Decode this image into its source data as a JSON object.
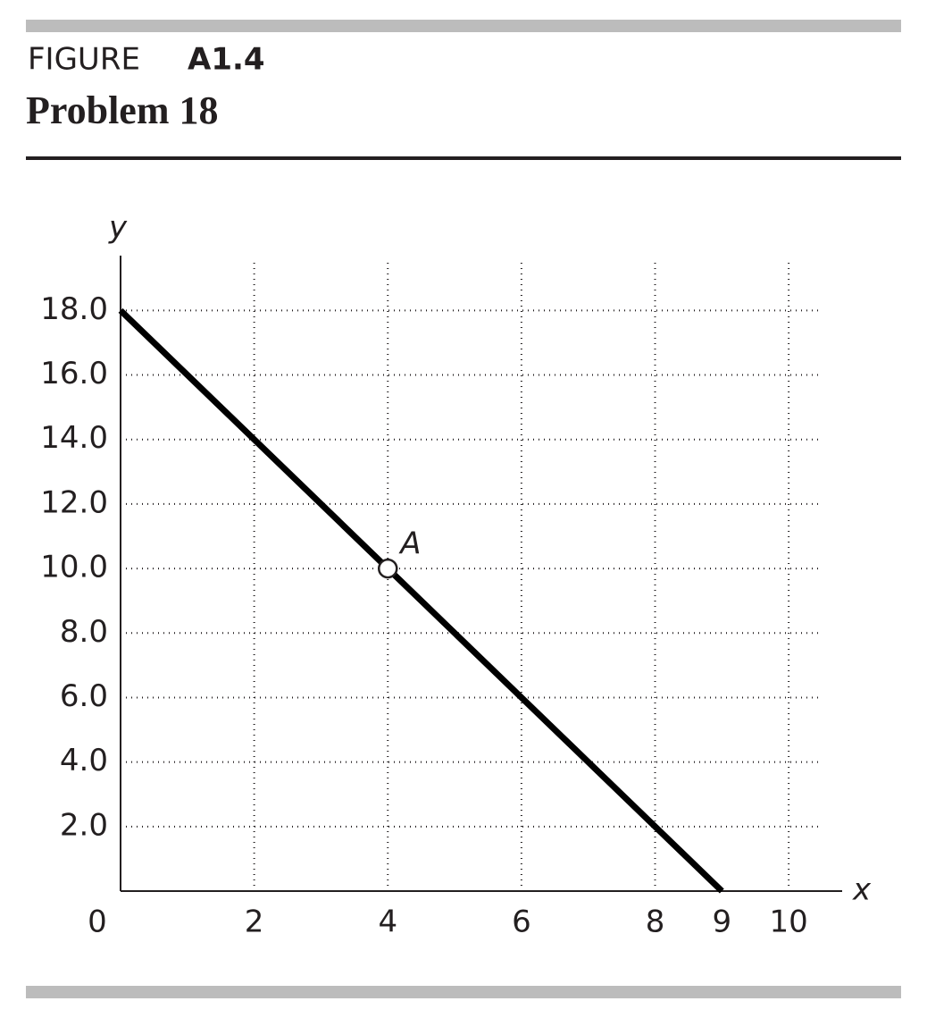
{
  "header": {
    "figure_label": "FIGURE",
    "figure_number": "A1.4",
    "title": "Problem 18"
  },
  "chart_data": {
    "type": "line",
    "x_label": "x",
    "y_label": "y",
    "x": [
      0,
      4,
      9
    ],
    "series": [
      {
        "color": "#000000",
        "values": [
          18,
          10,
          0
        ]
      }
    ],
    "points": [
      {
        "label": "A",
        "x": 4,
        "y": 10
      }
    ],
    "xlim": [
      0,
      10.8
    ],
    "ylim": [
      0,
      19.7
    ],
    "xticks": [
      0,
      2,
      4,
      6,
      8,
      9,
      10
    ],
    "xgrid": [
      2,
      4,
      6,
      8,
      10
    ],
    "yticks": [
      {
        "value": 2,
        "label": "2.0"
      },
      {
        "value": 4,
        "label": "4.0"
      },
      {
        "value": 6,
        "label": "6.0"
      },
      {
        "value": 8,
        "label": "8.0"
      },
      {
        "value": 10,
        "label": "10.0"
      },
      {
        "value": 12,
        "label": "12.0"
      },
      {
        "value": 14,
        "label": "14.0"
      },
      {
        "value": 16,
        "label": "16.0"
      },
      {
        "value": 18,
        "label": "18.0"
      }
    ],
    "grid": true
  }
}
